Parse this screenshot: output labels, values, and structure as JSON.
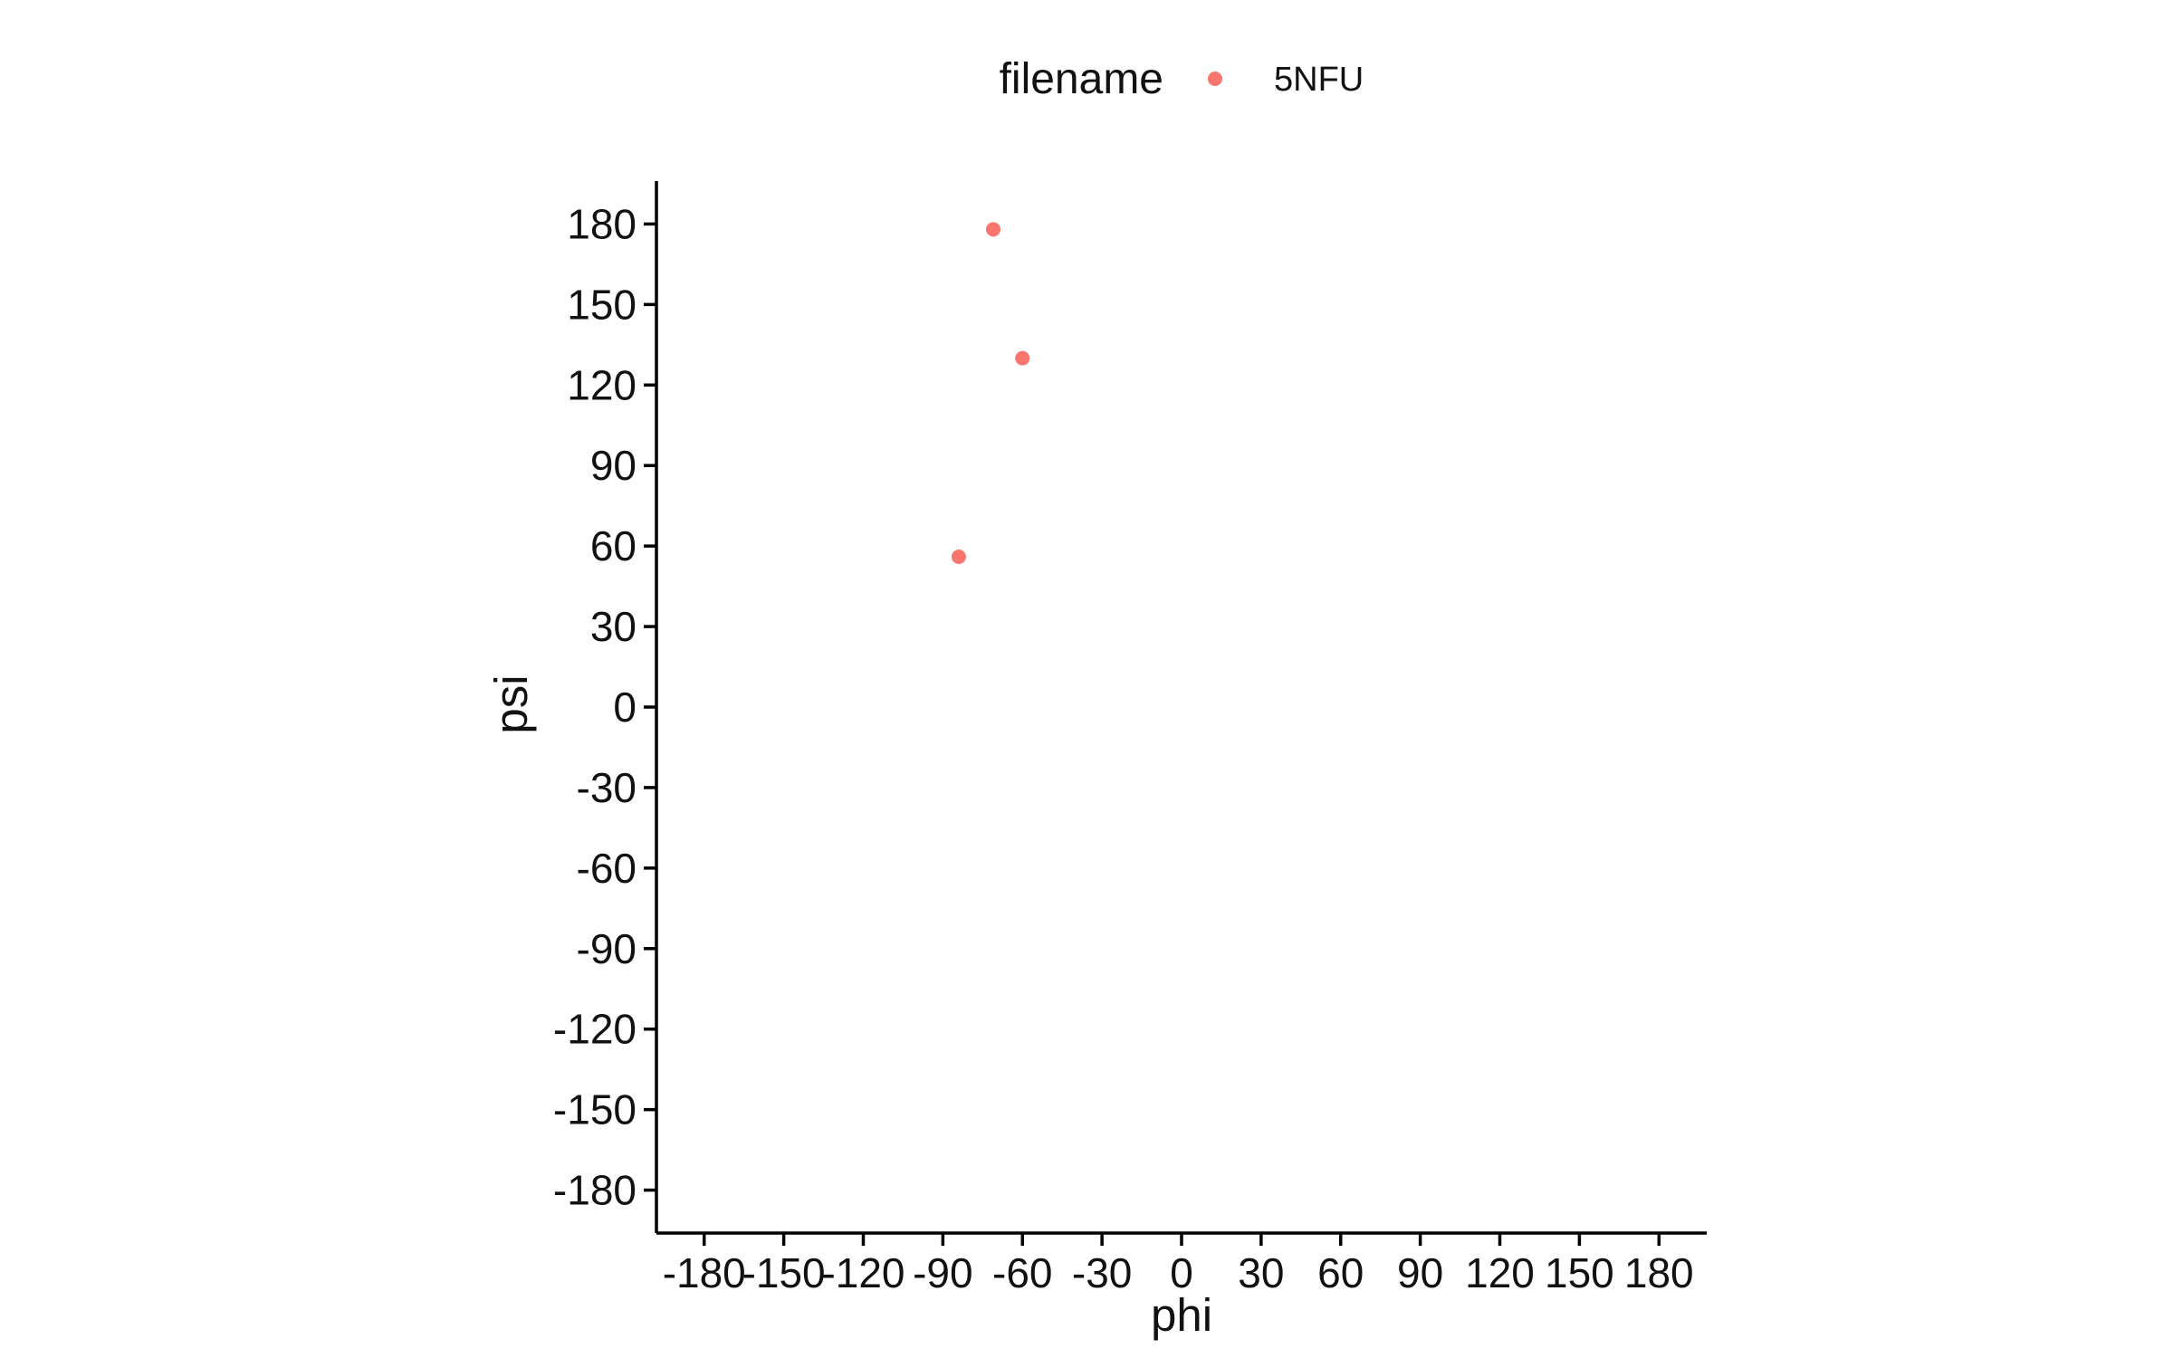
{
  "chart_data": {
    "type": "scatter",
    "title": "",
    "xlabel": "phi",
    "ylabel": "psi",
    "xlim": [
      -198,
      198
    ],
    "ylim": [
      -196,
      196
    ],
    "x_ticks": [
      -180,
      -150,
      -120,
      -90,
      -60,
      -30,
      0,
      30,
      60,
      90,
      120,
      150,
      180
    ],
    "x_tick_labels": [
      "-180",
      "-150",
      "-120",
      "-90",
      "-60",
      "-30",
      "0",
      "30",
      "60",
      "90",
      "120",
      "150",
      "180"
    ],
    "y_ticks": [
      -180,
      -150,
      -120,
      -90,
      -60,
      -30,
      0,
      30,
      60,
      90,
      120,
      150,
      180
    ],
    "y_tick_labels": [
      "-180",
      "-150",
      "-120",
      "-90",
      "-60",
      "-30",
      "0",
      "30",
      "60",
      "90",
      "120",
      "150",
      "180"
    ],
    "grid": false,
    "legend": {
      "title": "filename",
      "placement": "top"
    },
    "series": [
      {
        "name": "5NFU",
        "color": "#F8766D",
        "points": [
          {
            "x": -71,
            "y": 178
          },
          {
            "x": -60,
            "y": 130
          },
          {
            "x": -84,
            "y": 56
          }
        ]
      }
    ]
  }
}
